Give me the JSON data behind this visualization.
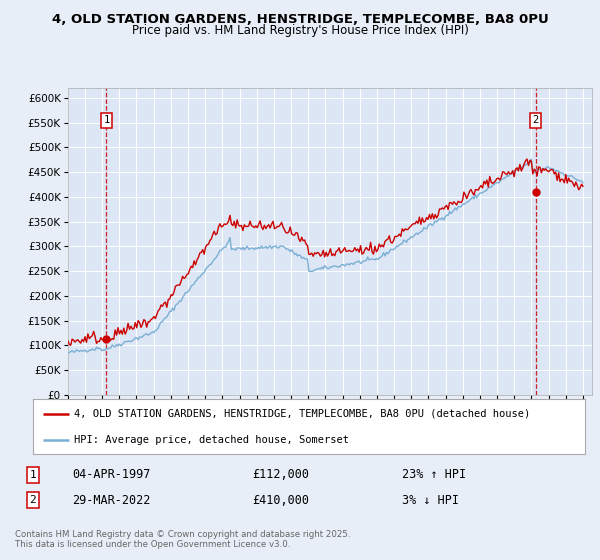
{
  "title1": "4, OLD STATION GARDENS, HENSTRIDGE, TEMPLECOMBE, BA8 0PU",
  "title2": "Price paid vs. HM Land Registry's House Price Index (HPI)",
  "legend_label_red": "4, OLD STATION GARDENS, HENSTRIDGE, TEMPLECOMBE, BA8 0PU (detached house)",
  "legend_label_blue": "HPI: Average price, detached house, Somerset",
  "annotation1_label": "1",
  "annotation1_date": "04-APR-1997",
  "annotation1_price": "£112,000",
  "annotation1_hpi": "23% ↑ HPI",
  "annotation2_label": "2",
  "annotation2_date": "29-MAR-2022",
  "annotation2_price": "£410,000",
  "annotation2_hpi": "3% ↓ HPI",
  "copyright": "Contains HM Land Registry data © Crown copyright and database right 2025.\nThis data is licensed under the Open Government Licence v3.0.",
  "bg_color": "#e8eef8",
  "plot_bg_color": "#dce6f5",
  "red_color": "#cc0000",
  "blue_color": "#7bafd4",
  "sale1_year": 1997.25,
  "sale1_price": 112000,
  "sale2_year": 2022.24,
  "sale2_price": 410000,
  "ylim_max": 620000,
  "ylim_min": 0
}
